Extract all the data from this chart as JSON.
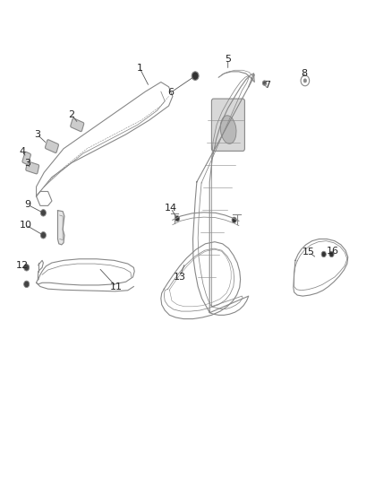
{
  "background_color": "#ffffff",
  "fig_width": 4.38,
  "fig_height": 5.33,
  "dpi": 100,
  "part_line_color": "#888888",
  "label_fontsize": 8,
  "label_color": "#222222",
  "leader_color": "#555555"
}
